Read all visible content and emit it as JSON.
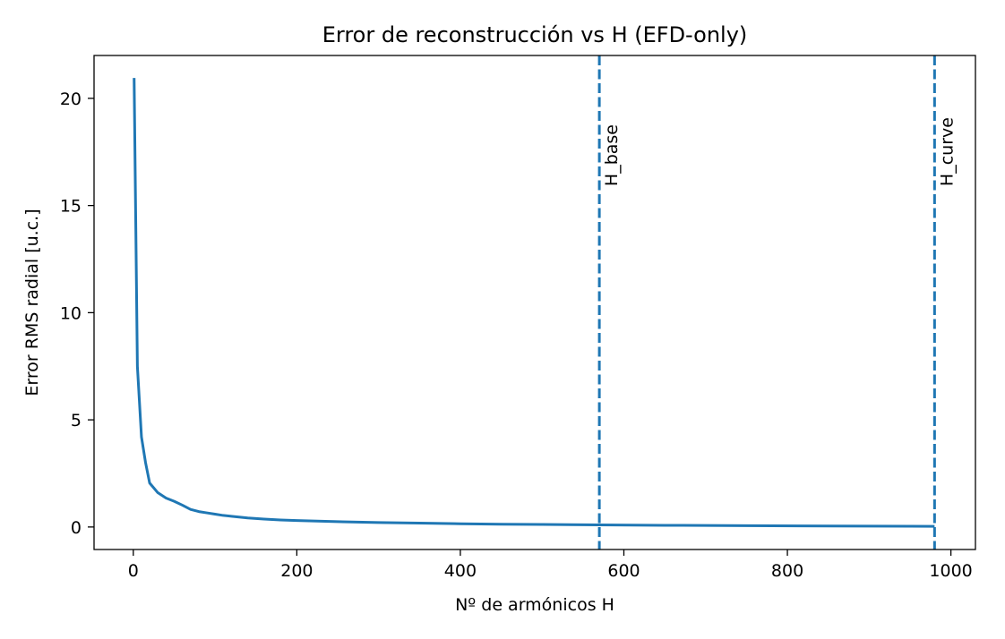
{
  "chart_data": {
    "type": "line",
    "title": "Error de reconstrucción vs H (EFD-only)",
    "xlabel": "Nº de armónicos H",
    "ylabel": "Error RMS radial [u.c.]",
    "xlim": [
      -48,
      1030
    ],
    "ylim": [
      -1.05,
      22.0
    ],
    "xticks": [
      0,
      200,
      400,
      600,
      800,
      1000
    ],
    "yticks": [
      0,
      5,
      10,
      15,
      20
    ],
    "grid": false,
    "series": [
      {
        "color": "#1f77b4",
        "x": [
          1,
          5,
          10,
          15,
          20,
          30,
          40,
          50,
          60,
          70,
          80,
          90,
          100,
          110,
          120,
          140,
          160,
          180,
          200,
          250,
          300,
          350,
          400,
          450,
          500,
          570,
          650,
          750,
          850,
          950,
          980
        ],
        "y": [
          20.95,
          7.5,
          4.2,
          3.0,
          2.05,
          1.6,
          1.35,
          1.2,
          1.02,
          0.82,
          0.72,
          0.66,
          0.6,
          0.54,
          0.5,
          0.42,
          0.37,
          0.33,
          0.3,
          0.25,
          0.21,
          0.18,
          0.15,
          0.13,
          0.12,
          0.1,
          0.08,
          0.06,
          0.045,
          0.035,
          0.03
        ]
      }
    ],
    "vlines": [
      {
        "x": 570,
        "label": "H_base",
        "color": "#1f77b4",
        "style": "dashed"
      },
      {
        "x": 980,
        "label": "H_curve",
        "color": "#1f77b4",
        "style": "dashed"
      }
    ]
  }
}
